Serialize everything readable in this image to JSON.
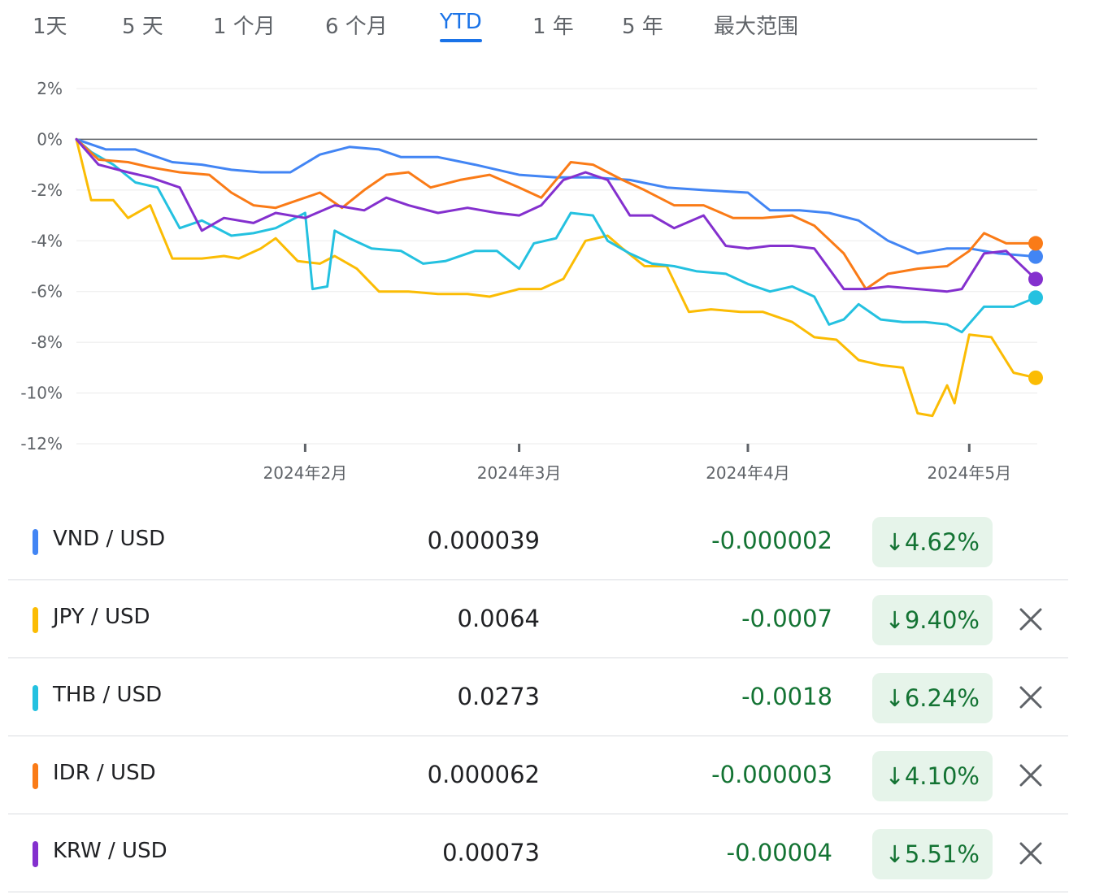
{
  "tabs": [
    {
      "label": "1天",
      "active": false
    },
    {
      "label": "5 天",
      "active": false
    },
    {
      "label": "1 个月",
      "active": false
    },
    {
      "label": "6 个月",
      "active": false
    },
    {
      "label": "YTD",
      "active": true
    },
    {
      "label": "1 年",
      "active": false
    },
    {
      "label": "5 年",
      "active": false
    },
    {
      "label": "最大范围",
      "active": false
    }
  ],
  "chart_data": {
    "type": "line",
    "x_unit": "date",
    "x_range": [
      "2024-01-01",
      "2024-05-10"
    ],
    "ylim": [
      -12,
      2
    ],
    "y_ticks": [
      "2%",
      "0%",
      "-2%",
      "-4%",
      "-6%",
      "-8%",
      "-10%",
      "-12%"
    ],
    "y_tick_values": [
      2,
      0,
      -2,
      -4,
      -6,
      -8,
      -10,
      -12
    ],
    "x_ticks": [
      {
        "date": "2024-02-01",
        "label": "2024年2月"
      },
      {
        "date": "2024-03-01",
        "label": "2024年3月"
      },
      {
        "date": "2024-04-01",
        "label": "2024年4月"
      },
      {
        "date": "2024-05-01",
        "label": "2024年5月"
      }
    ],
    "baseline": 0,
    "grid": true,
    "legend": "none",
    "series": [
      {
        "name": "VND / USD",
        "color": "#4285f4",
        "points": [
          [
            "2024-01-01",
            0
          ],
          [
            "2024-01-05",
            -0.4
          ],
          [
            "2024-01-09",
            -0.4
          ],
          [
            "2024-01-14",
            -0.9
          ],
          [
            "2024-01-18",
            -1.0
          ],
          [
            "2024-01-22",
            -1.2
          ],
          [
            "2024-01-26",
            -1.3
          ],
          [
            "2024-01-30",
            -1.3
          ],
          [
            "2024-02-03",
            -0.6
          ],
          [
            "2024-02-07",
            -0.3
          ],
          [
            "2024-02-11",
            -0.4
          ],
          [
            "2024-02-14",
            -0.7
          ],
          [
            "2024-02-19",
            -0.7
          ],
          [
            "2024-02-24",
            -1.0
          ],
          [
            "2024-03-01",
            -1.4
          ],
          [
            "2024-03-06",
            -1.5
          ],
          [
            "2024-03-11",
            -1.5
          ],
          [
            "2024-03-16",
            -1.6
          ],
          [
            "2024-03-21",
            -1.9
          ],
          [
            "2024-03-26",
            -2.0
          ],
          [
            "2024-04-01",
            -2.1
          ],
          [
            "2024-04-04",
            -2.8
          ],
          [
            "2024-04-08",
            -2.8
          ],
          [
            "2024-04-12",
            -2.9
          ],
          [
            "2024-04-16",
            -3.2
          ],
          [
            "2024-04-20",
            -4.0
          ],
          [
            "2024-04-24",
            -4.5
          ],
          [
            "2024-04-28",
            -4.3
          ],
          [
            "2024-05-01",
            -4.3
          ],
          [
            "2024-05-05",
            -4.5
          ],
          [
            "2024-05-10",
            -4.62
          ]
        ]
      },
      {
        "name": "JPY / USD",
        "color": "#fbbc04",
        "points": [
          [
            "2024-01-01",
            0
          ],
          [
            "2024-01-03",
            -2.4
          ],
          [
            "2024-01-06",
            -2.4
          ],
          [
            "2024-01-08",
            -3.1
          ],
          [
            "2024-01-11",
            -2.6
          ],
          [
            "2024-01-14",
            -4.7
          ],
          [
            "2024-01-18",
            -4.7
          ],
          [
            "2024-01-21",
            -4.6
          ],
          [
            "2024-01-23",
            -4.7
          ],
          [
            "2024-01-26",
            -4.3
          ],
          [
            "2024-01-28",
            -3.9
          ],
          [
            "2024-01-31",
            -4.8
          ],
          [
            "2024-02-03",
            -4.9
          ],
          [
            "2024-02-05",
            -4.6
          ],
          [
            "2024-02-08",
            -5.1
          ],
          [
            "2024-02-11",
            -6.0
          ],
          [
            "2024-02-15",
            -6.0
          ],
          [
            "2024-02-19",
            -6.1
          ],
          [
            "2024-02-23",
            -6.1
          ],
          [
            "2024-02-26",
            -6.2
          ],
          [
            "2024-03-01",
            -5.9
          ],
          [
            "2024-03-04",
            -5.9
          ],
          [
            "2024-03-07",
            -5.5
          ],
          [
            "2024-03-10",
            -4.0
          ],
          [
            "2024-03-13",
            -3.8
          ],
          [
            "2024-03-15",
            -4.3
          ],
          [
            "2024-03-18",
            -5.0
          ],
          [
            "2024-03-21",
            -5.0
          ],
          [
            "2024-03-24",
            -6.8
          ],
          [
            "2024-03-27",
            -6.7
          ],
          [
            "2024-03-31",
            -6.8
          ],
          [
            "2024-04-03",
            -6.8
          ],
          [
            "2024-04-07",
            -7.2
          ],
          [
            "2024-04-10",
            -7.8
          ],
          [
            "2024-04-13",
            -7.9
          ],
          [
            "2024-04-16",
            -8.7
          ],
          [
            "2024-04-19",
            -8.9
          ],
          [
            "2024-04-22",
            -9.0
          ],
          [
            "2024-04-24",
            -10.8
          ],
          [
            "2024-04-26",
            -10.9
          ],
          [
            "2024-04-28",
            -9.7
          ],
          [
            "2024-04-29",
            -10.4
          ],
          [
            "2024-05-01",
            -7.7
          ],
          [
            "2024-05-04",
            -7.8
          ],
          [
            "2024-05-07",
            -9.2
          ],
          [
            "2024-05-10",
            -9.4
          ]
        ]
      },
      {
        "name": "THB / USD",
        "color": "#24c1e0",
        "points": [
          [
            "2024-01-01",
            0
          ],
          [
            "2024-01-03",
            -0.5
          ],
          [
            "2024-01-06",
            -1.0
          ],
          [
            "2024-01-09",
            -1.7
          ],
          [
            "2024-01-12",
            -1.9
          ],
          [
            "2024-01-15",
            -3.5
          ],
          [
            "2024-01-18",
            -3.2
          ],
          [
            "2024-01-22",
            -3.8
          ],
          [
            "2024-01-25",
            -3.7
          ],
          [
            "2024-01-28",
            -3.5
          ],
          [
            "2024-02-01",
            -2.9
          ],
          [
            "2024-02-02",
            -5.9
          ],
          [
            "2024-02-04",
            -5.8
          ],
          [
            "2024-02-05",
            -3.6
          ],
          [
            "2024-02-07",
            -3.9
          ],
          [
            "2024-02-10",
            -4.3
          ],
          [
            "2024-02-14",
            -4.4
          ],
          [
            "2024-02-17",
            -4.9
          ],
          [
            "2024-02-20",
            -4.8
          ],
          [
            "2024-02-24",
            -4.4
          ],
          [
            "2024-02-27",
            -4.4
          ],
          [
            "2024-03-01",
            -5.1
          ],
          [
            "2024-03-03",
            -4.1
          ],
          [
            "2024-03-06",
            -3.9
          ],
          [
            "2024-03-08",
            -2.9
          ],
          [
            "2024-03-11",
            -3.0
          ],
          [
            "2024-03-13",
            -4.0
          ],
          [
            "2024-03-16",
            -4.5
          ],
          [
            "2024-03-19",
            -4.9
          ],
          [
            "2024-03-22",
            -5.0
          ],
          [
            "2024-03-25",
            -5.2
          ],
          [
            "2024-03-29",
            -5.3
          ],
          [
            "2024-04-01",
            -5.7
          ],
          [
            "2024-04-04",
            -6.0
          ],
          [
            "2024-04-07",
            -5.8
          ],
          [
            "2024-04-10",
            -6.2
          ],
          [
            "2024-04-12",
            -7.3
          ],
          [
            "2024-04-14",
            -7.1
          ],
          [
            "2024-04-16",
            -6.5
          ],
          [
            "2024-04-19",
            -7.1
          ],
          [
            "2024-04-22",
            -7.2
          ],
          [
            "2024-04-25",
            -7.2
          ],
          [
            "2024-04-28",
            -7.3
          ],
          [
            "2024-04-30",
            -7.6
          ],
          [
            "2024-05-03",
            -6.6
          ],
          [
            "2024-05-07",
            -6.6
          ],
          [
            "2024-05-10",
            -6.24
          ]
        ]
      },
      {
        "name": "IDR / USD",
        "color": "#fa7b17",
        "points": [
          [
            "2024-01-01",
            0
          ],
          [
            "2024-01-04",
            -0.8
          ],
          [
            "2024-01-08",
            -0.9
          ],
          [
            "2024-01-11",
            -1.1
          ],
          [
            "2024-01-15",
            -1.3
          ],
          [
            "2024-01-19",
            -1.4
          ],
          [
            "2024-01-22",
            -2.1
          ],
          [
            "2024-01-25",
            -2.6
          ],
          [
            "2024-01-28",
            -2.7
          ],
          [
            "2024-01-31",
            -2.4
          ],
          [
            "2024-02-03",
            -2.1
          ],
          [
            "2024-02-06",
            -2.7
          ],
          [
            "2024-02-09",
            -2.0
          ],
          [
            "2024-02-12",
            -1.4
          ],
          [
            "2024-02-15",
            -1.3
          ],
          [
            "2024-02-18",
            -1.9
          ],
          [
            "2024-02-22",
            -1.6
          ],
          [
            "2024-02-26",
            -1.4
          ],
          [
            "2024-03-01",
            -1.9
          ],
          [
            "2024-03-04",
            -2.3
          ],
          [
            "2024-03-06",
            -1.6
          ],
          [
            "2024-03-08",
            -0.9
          ],
          [
            "2024-03-11",
            -1.0
          ],
          [
            "2024-03-15",
            -1.6
          ],
          [
            "2024-03-18",
            -2.0
          ],
          [
            "2024-03-22",
            -2.6
          ],
          [
            "2024-03-26",
            -2.6
          ],
          [
            "2024-03-30",
            -3.1
          ],
          [
            "2024-04-03",
            -3.1
          ],
          [
            "2024-04-07",
            -3.0
          ],
          [
            "2024-04-10",
            -3.4
          ],
          [
            "2024-04-14",
            -4.5
          ],
          [
            "2024-04-17",
            -5.9
          ],
          [
            "2024-04-20",
            -5.3
          ],
          [
            "2024-04-24",
            -5.1
          ],
          [
            "2024-04-28",
            -5.0
          ],
          [
            "2024-05-01",
            -4.4
          ],
          [
            "2024-05-03",
            -3.7
          ],
          [
            "2024-05-06",
            -4.1
          ],
          [
            "2024-05-10",
            -4.1
          ]
        ]
      },
      {
        "name": "KRW / USD",
        "color": "#8430ce",
        "points": [
          [
            "2024-01-01",
            0
          ],
          [
            "2024-01-04",
            -1.0
          ],
          [
            "2024-01-08",
            -1.3
          ],
          [
            "2024-01-11",
            -1.5
          ],
          [
            "2024-01-15",
            -1.9
          ],
          [
            "2024-01-18",
            -3.6
          ],
          [
            "2024-01-21",
            -3.1
          ],
          [
            "2024-01-25",
            -3.3
          ],
          [
            "2024-01-28",
            -2.9
          ],
          [
            "2024-02-01",
            -3.1
          ],
          [
            "2024-02-05",
            -2.6
          ],
          [
            "2024-02-09",
            -2.8
          ],
          [
            "2024-02-12",
            -2.3
          ],
          [
            "2024-02-15",
            -2.6
          ],
          [
            "2024-02-19",
            -2.9
          ],
          [
            "2024-02-23",
            -2.7
          ],
          [
            "2024-02-27",
            -2.9
          ],
          [
            "2024-03-01",
            -3.0
          ],
          [
            "2024-03-04",
            -2.6
          ],
          [
            "2024-03-07",
            -1.6
          ],
          [
            "2024-03-10",
            -1.3
          ],
          [
            "2024-03-13",
            -1.6
          ],
          [
            "2024-03-16",
            -3.0
          ],
          [
            "2024-03-19",
            -3.0
          ],
          [
            "2024-03-22",
            -3.5
          ],
          [
            "2024-03-26",
            -3.0
          ],
          [
            "2024-03-29",
            -4.2
          ],
          [
            "2024-04-01",
            -4.3
          ],
          [
            "2024-04-04",
            -4.2
          ],
          [
            "2024-04-07",
            -4.2
          ],
          [
            "2024-04-10",
            -4.3
          ],
          [
            "2024-04-14",
            -5.9
          ],
          [
            "2024-04-17",
            -5.9
          ],
          [
            "2024-04-20",
            -5.8
          ],
          [
            "2024-04-24",
            -5.9
          ],
          [
            "2024-04-28",
            -6.0
          ],
          [
            "2024-04-30",
            -5.9
          ],
          [
            "2024-05-03",
            -4.5
          ],
          [
            "2024-05-06",
            -4.4
          ],
          [
            "2024-05-10",
            -5.51
          ]
        ]
      }
    ]
  },
  "rows": [
    {
      "pair": "VND / USD",
      "price": "0.000039",
      "change": "-0.000002",
      "pct": "4.62%",
      "color": "#4285f4",
      "removable": false
    },
    {
      "pair": "JPY / USD",
      "price": "0.0064",
      "change": "-0.0007",
      "pct": "9.40%",
      "color": "#fbbc04",
      "removable": true
    },
    {
      "pair": "THB / USD",
      "price": "0.0273",
      "change": "-0.0018",
      "pct": "6.24%",
      "color": "#24c1e0",
      "removable": true
    },
    {
      "pair": "IDR / USD",
      "price": "0.000062",
      "change": "-0.000003",
      "pct": "4.10%",
      "color": "#fa7b17",
      "removable": true
    },
    {
      "pair": "KRW / USD",
      "price": "0.00073",
      "change": "-0.00004",
      "pct": "5.51%",
      "color": "#8430ce",
      "removable": true
    }
  ]
}
